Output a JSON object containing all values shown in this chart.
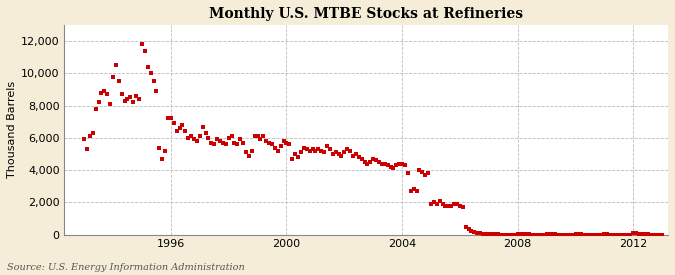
{
  "title": "Monthly U.S. MTBE Stocks at Refineries",
  "ylabel": "Thousand Barrels",
  "source": "Source: U.S. Energy Information Administration",
  "background_color": "#F5EDD8",
  "plot_background_color": "#FFFFFF",
  "dot_color": "#CC0000",
  "ylim": [
    0,
    13000
  ],
  "yticks": [
    0,
    2000,
    4000,
    6000,
    8000,
    10000,
    12000
  ],
  "xlim_start": 1992.3,
  "xlim_end": 2013.2,
  "xticks": [
    1996,
    2000,
    2004,
    2008,
    2012
  ],
  "data": [
    [
      1993.0,
      5900
    ],
    [
      1993.1,
      5300
    ],
    [
      1993.2,
      6100
    ],
    [
      1993.3,
      6300
    ],
    [
      1993.4,
      7800
    ],
    [
      1993.5,
      8200
    ],
    [
      1993.6,
      8800
    ],
    [
      1993.7,
      8900
    ],
    [
      1993.8,
      8700
    ],
    [
      1993.9,
      8100
    ],
    [
      1994.0,
      9800
    ],
    [
      1994.1,
      10500
    ],
    [
      1994.2,
      9500
    ],
    [
      1994.3,
      8700
    ],
    [
      1994.4,
      8300
    ],
    [
      1994.5,
      8400
    ],
    [
      1994.6,
      8500
    ],
    [
      1994.7,
      8200
    ],
    [
      1994.8,
      8600
    ],
    [
      1994.9,
      8400
    ],
    [
      1995.0,
      11800
    ],
    [
      1995.1,
      11400
    ],
    [
      1995.2,
      10400
    ],
    [
      1995.3,
      10000
    ],
    [
      1995.4,
      9500
    ],
    [
      1995.5,
      8900
    ],
    [
      1995.6,
      5400
    ],
    [
      1995.7,
      4700
    ],
    [
      1995.8,
      5200
    ],
    [
      1995.9,
      7200
    ],
    [
      1996.0,
      7200
    ],
    [
      1996.1,
      6900
    ],
    [
      1996.2,
      6400
    ],
    [
      1996.3,
      6600
    ],
    [
      1996.4,
      6800
    ],
    [
      1996.5,
      6400
    ],
    [
      1996.6,
      6000
    ],
    [
      1996.7,
      6100
    ],
    [
      1996.8,
      5900
    ],
    [
      1996.9,
      5800
    ],
    [
      1997.0,
      6100
    ],
    [
      1997.1,
      6700
    ],
    [
      1997.2,
      6300
    ],
    [
      1997.3,
      6000
    ],
    [
      1997.4,
      5700
    ],
    [
      1997.5,
      5600
    ],
    [
      1997.6,
      5900
    ],
    [
      1997.7,
      5800
    ],
    [
      1997.8,
      5700
    ],
    [
      1997.9,
      5600
    ],
    [
      1998.0,
      6000
    ],
    [
      1998.1,
      6100
    ],
    [
      1998.2,
      5700
    ],
    [
      1998.3,
      5600
    ],
    [
      1998.4,
      5900
    ],
    [
      1998.5,
      5700
    ],
    [
      1998.6,
      5100
    ],
    [
      1998.7,
      4900
    ],
    [
      1998.8,
      5200
    ],
    [
      1998.9,
      6100
    ],
    [
      1999.0,
      6100
    ],
    [
      1999.1,
      5900
    ],
    [
      1999.2,
      6100
    ],
    [
      1999.3,
      5800
    ],
    [
      1999.4,
      5700
    ],
    [
      1999.5,
      5600
    ],
    [
      1999.6,
      5400
    ],
    [
      1999.7,
      5200
    ],
    [
      1999.8,
      5500
    ],
    [
      1999.9,
      5800
    ],
    [
      2000.0,
      5700
    ],
    [
      2000.1,
      5600
    ],
    [
      2000.2,
      4700
    ],
    [
      2000.3,
      5000
    ],
    [
      2000.4,
      4800
    ],
    [
      2000.5,
      5100
    ],
    [
      2000.6,
      5400
    ],
    [
      2000.7,
      5300
    ],
    [
      2000.8,
      5200
    ],
    [
      2000.9,
      5300
    ],
    [
      2001.0,
      5200
    ],
    [
      2001.1,
      5300
    ],
    [
      2001.2,
      5200
    ],
    [
      2001.3,
      5100
    ],
    [
      2001.4,
      5500
    ],
    [
      2001.5,
      5300
    ],
    [
      2001.6,
      5000
    ],
    [
      2001.7,
      5100
    ],
    [
      2001.8,
      5000
    ],
    [
      2001.9,
      4900
    ],
    [
      2002.0,
      5100
    ],
    [
      2002.1,
      5300
    ],
    [
      2002.2,
      5200
    ],
    [
      2002.3,
      4900
    ],
    [
      2002.4,
      5000
    ],
    [
      2002.5,
      4800
    ],
    [
      2002.6,
      4700
    ],
    [
      2002.7,
      4500
    ],
    [
      2002.8,
      4400
    ],
    [
      2002.9,
      4500
    ],
    [
      2003.0,
      4700
    ],
    [
      2003.1,
      4600
    ],
    [
      2003.2,
      4500
    ],
    [
      2003.3,
      4400
    ],
    [
      2003.4,
      4400
    ],
    [
      2003.5,
      4300
    ],
    [
      2003.6,
      4200
    ],
    [
      2003.7,
      4100
    ],
    [
      2003.8,
      4300
    ],
    [
      2003.9,
      4400
    ],
    [
      2004.0,
      4400
    ],
    [
      2004.1,
      4300
    ],
    [
      2004.2,
      3800
    ],
    [
      2004.3,
      2700
    ],
    [
      2004.4,
      2800
    ],
    [
      2004.5,
      2700
    ],
    [
      2004.6,
      4000
    ],
    [
      2004.7,
      3900
    ],
    [
      2004.8,
      3700
    ],
    [
      2004.9,
      3800
    ],
    [
      2005.0,
      1900
    ],
    [
      2005.1,
      2000
    ],
    [
      2005.2,
      1900
    ],
    [
      2005.3,
      2100
    ],
    [
      2005.4,
      1900
    ],
    [
      2005.5,
      1800
    ],
    [
      2005.6,
      1800
    ],
    [
      2005.7,
      1800
    ],
    [
      2005.8,
      1900
    ],
    [
      2005.9,
      1900
    ],
    [
      2006.0,
      1800
    ],
    [
      2006.1,
      1700
    ],
    [
      2006.2,
      500
    ],
    [
      2006.3,
      350
    ],
    [
      2006.4,
      250
    ],
    [
      2006.5,
      180
    ],
    [
      2006.6,
      120
    ],
    [
      2006.7,
      80
    ],
    [
      2006.8,
      60
    ],
    [
      2006.9,
      40
    ],
    [
      2007.0,
      30
    ],
    [
      2007.1,
      20
    ],
    [
      2007.2,
      15
    ],
    [
      2007.3,
      10
    ],
    [
      2007.4,
      8
    ],
    [
      2007.5,
      6
    ],
    [
      2007.6,
      5
    ],
    [
      2007.7,
      5
    ],
    [
      2007.8,
      5
    ],
    [
      2007.9,
      5
    ],
    [
      2008.0,
      60
    ],
    [
      2008.1,
      40
    ],
    [
      2008.2,
      30
    ],
    [
      2008.3,
      20
    ],
    [
      2008.4,
      12
    ],
    [
      2008.5,
      8
    ],
    [
      2008.6,
      6
    ],
    [
      2008.7,
      5
    ],
    [
      2008.8,
      5
    ],
    [
      2008.9,
      5
    ],
    [
      2009.0,
      30
    ],
    [
      2009.1,
      20
    ],
    [
      2009.2,
      15
    ],
    [
      2009.3,
      10
    ],
    [
      2009.4,
      8
    ],
    [
      2009.5,
      6
    ],
    [
      2009.6,
      5
    ],
    [
      2009.7,
      5
    ],
    [
      2009.8,
      5
    ],
    [
      2009.9,
      5
    ],
    [
      2010.0,
      20
    ],
    [
      2010.1,
      15
    ],
    [
      2010.2,
      10
    ],
    [
      2010.3,
      8
    ],
    [
      2010.4,
      6
    ],
    [
      2010.5,
      5
    ],
    [
      2010.6,
      5
    ],
    [
      2010.7,
      5
    ],
    [
      2010.8,
      5
    ],
    [
      2010.9,
      5
    ],
    [
      2011.0,
      15
    ],
    [
      2011.1,
      10
    ],
    [
      2011.2,
      8
    ],
    [
      2011.3,
      6
    ],
    [
      2011.4,
      5
    ],
    [
      2011.5,
      5
    ],
    [
      2011.6,
      5
    ],
    [
      2011.7,
      5
    ],
    [
      2011.8,
      5
    ],
    [
      2011.9,
      5
    ],
    [
      2012.0,
      100
    ],
    [
      2012.1,
      80
    ],
    [
      2012.2,
      60
    ],
    [
      2012.3,
      40
    ],
    [
      2012.4,
      20
    ],
    [
      2012.5,
      10
    ],
    [
      2012.6,
      8
    ],
    [
      2012.7,
      6
    ],
    [
      2012.8,
      5
    ],
    [
      2012.9,
      5
    ],
    [
      2013.0,
      5
    ]
  ]
}
